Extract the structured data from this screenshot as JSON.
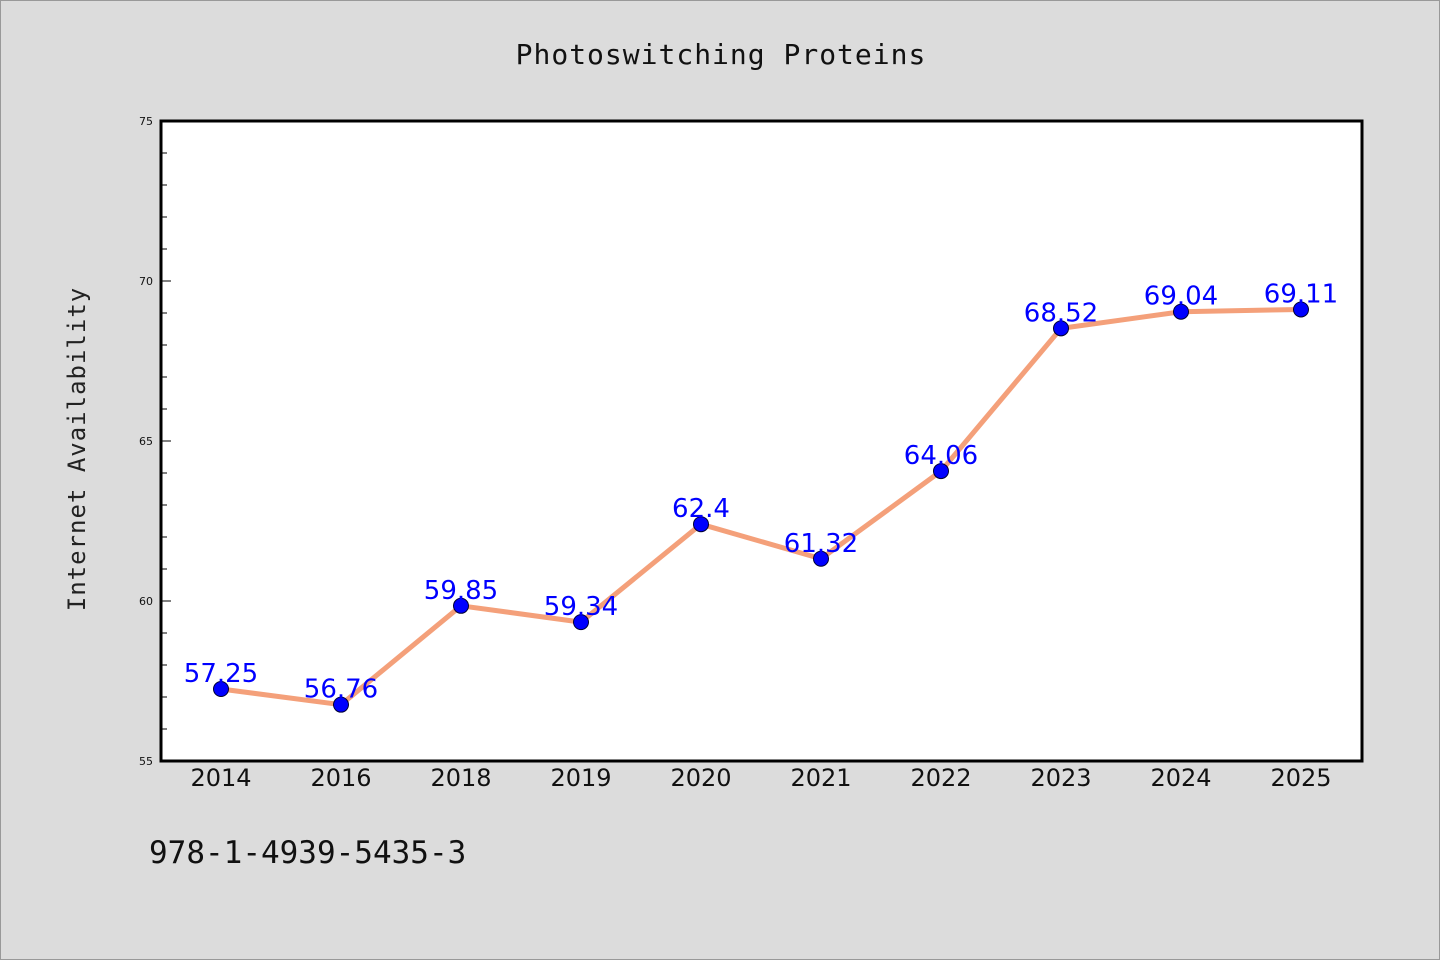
{
  "chart_data": {
    "type": "line",
    "title": "Photoswitching Proteins",
    "xlabel": "",
    "ylabel": "Internet Availability",
    "categories": [
      "2014",
      "2016",
      "2018",
      "2019",
      "2020",
      "2021",
      "2022",
      "2023",
      "2024",
      "2025"
    ],
    "series": [
      {
        "values": [
          57.25,
          56.76,
          59.85,
          59.34,
          62.4,
          61.32,
          64.06,
          68.52,
          69.04,
          69.11
        ],
        "labels": [
          "57.25",
          "56.76",
          "59.85",
          "59.34",
          "62.4",
          "61.32",
          "64.06",
          "68.52",
          "69.04",
          "69.11"
        ]
      }
    ],
    "ylim": [
      55,
      75
    ],
    "y_ticks": [
      "55",
      "60",
      "65",
      "70",
      "75"
    ],
    "grid": false,
    "line_color": "#f4a07a",
    "marker_color": "#0000ff",
    "label_color": "#0000ff"
  },
  "footer": {
    "code": "978-1-4939-5435-3"
  }
}
